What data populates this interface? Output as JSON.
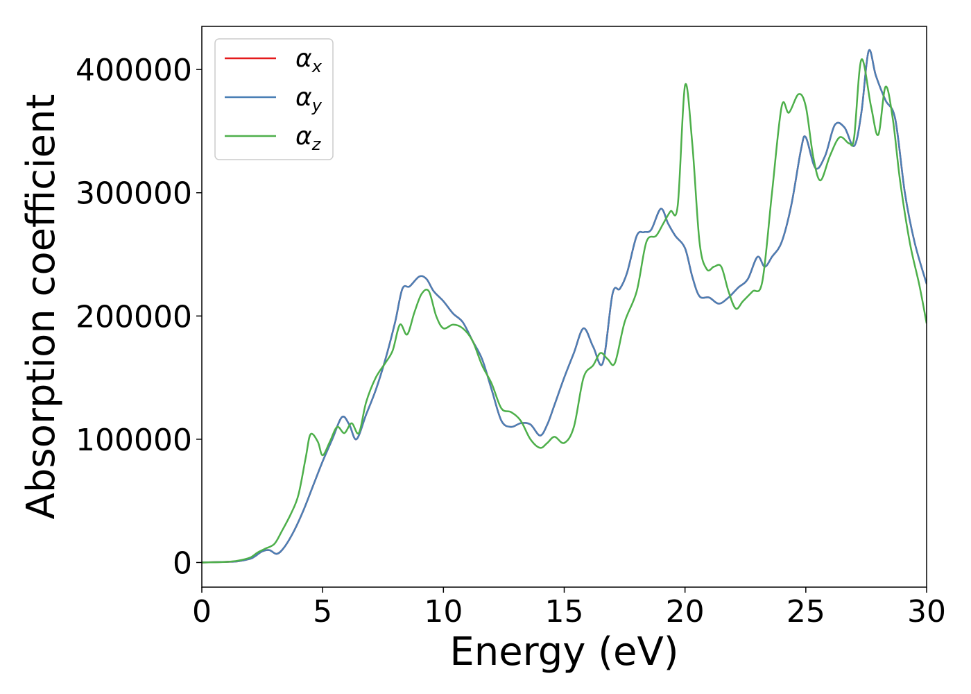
{
  "chart_data": {
    "type": "line",
    "title": "",
    "xlabel": "Energy (eV)",
    "ylabel": "Absorption coefficient",
    "xlim": [
      0,
      30
    ],
    "ylim": [
      -20000,
      435000
    ],
    "xticks": [
      0,
      5,
      10,
      15,
      20,
      25,
      30
    ],
    "yticks": [
      0,
      100000,
      200000,
      300000,
      400000
    ],
    "xtick_labels": [
      "0",
      "5",
      "10",
      "15",
      "20",
      "25",
      "30"
    ],
    "ytick_labels": [
      "0",
      "100000",
      "200000",
      "300000",
      "400000"
    ],
    "grid": false,
    "legend_position": "top-left",
    "series": [
      {
        "name": "αx",
        "legend_base": "α",
        "legend_sub": "x",
        "color": "#e41a1c",
        "x": [
          0,
          1,
          1.5,
          2,
          2.2,
          2.5,
          2.8,
          3.1,
          3.4,
          3.8,
          4.2,
          4.6,
          5.0,
          5.4,
          5.8,
          6.1,
          6.4,
          6.8,
          7.2,
          7.6,
          8.0,
          8.3,
          8.6,
          9.0,
          9.3,
          9.6,
          10.0,
          10.4,
          10.8,
          11.2,
          11.6,
          12.0,
          12.4,
          12.8,
          13.2,
          13.6,
          14.0,
          14.3,
          14.6,
          15.0,
          15.4,
          15.8,
          16.2,
          16.6,
          17.0,
          17.3,
          17.6,
          18.0,
          18.3,
          18.6,
          19.0,
          19.3,
          19.6,
          20.0,
          20.3,
          20.6,
          21.0,
          21.4,
          21.8,
          22.2,
          22.6,
          23.0,
          23.3,
          23.6,
          24.0,
          24.4,
          24.8,
          25.0,
          25.4,
          25.8,
          26.2,
          26.6,
          27.0,
          27.3,
          27.6,
          27.9,
          28.3,
          28.7,
          29.1,
          29.5,
          30.0
        ],
        "y": [
          0,
          500,
          1000,
          3000,
          5000,
          9000,
          10000,
          7000,
          12000,
          25000,
          42000,
          62000,
          82000,
          100000,
          118000,
          112000,
          100000,
          120000,
          140000,
          165000,
          195000,
          222000,
          224000,
          232000,
          230000,
          220000,
          212000,
          202000,
          195000,
          180000,
          165000,
          140000,
          115000,
          110000,
          113000,
          112000,
          103000,
          112000,
          128000,
          150000,
          170000,
          190000,
          175000,
          162000,
          218000,
          222000,
          235000,
          265000,
          268000,
          270000,
          287000,
          275000,
          265000,
          255000,
          232000,
          216000,
          215000,
          210000,
          215000,
          223000,
          230000,
          248000,
          240000,
          248000,
          260000,
          290000,
          335000,
          345000,
          320000,
          330000,
          355000,
          353000,
          338000,
          365000,
          415000,
          395000,
          375000,
          360000,
          300000,
          260000,
          226000
        ]
      },
      {
        "name": "αy",
        "legend_base": "α",
        "legend_sub": "y",
        "color": "#4a7fb5",
        "x": [
          0,
          1,
          1.5,
          2,
          2.2,
          2.5,
          2.8,
          3.1,
          3.4,
          3.8,
          4.2,
          4.6,
          5.0,
          5.4,
          5.8,
          6.1,
          6.4,
          6.8,
          7.2,
          7.6,
          8.0,
          8.3,
          8.6,
          9.0,
          9.3,
          9.6,
          10.0,
          10.4,
          10.8,
          11.2,
          11.6,
          12.0,
          12.4,
          12.8,
          13.2,
          13.6,
          14.0,
          14.3,
          14.6,
          15.0,
          15.4,
          15.8,
          16.2,
          16.6,
          17.0,
          17.3,
          17.6,
          18.0,
          18.3,
          18.6,
          19.0,
          19.3,
          19.6,
          20.0,
          20.3,
          20.6,
          21.0,
          21.4,
          21.8,
          22.2,
          22.6,
          23.0,
          23.3,
          23.6,
          24.0,
          24.4,
          24.8,
          25.0,
          25.4,
          25.8,
          26.2,
          26.6,
          27.0,
          27.3,
          27.6,
          27.9,
          28.3,
          28.7,
          29.1,
          29.5,
          30.0
        ],
        "y": [
          0,
          500,
          1000,
          3000,
          5000,
          9000,
          10000,
          7000,
          12000,
          25000,
          42000,
          62000,
          82000,
          100000,
          118000,
          112000,
          100000,
          120000,
          140000,
          165000,
          195000,
          222000,
          224000,
          232000,
          230000,
          220000,
          212000,
          202000,
          195000,
          180000,
          165000,
          140000,
          115000,
          110000,
          113000,
          112000,
          103000,
          112000,
          128000,
          150000,
          170000,
          190000,
          175000,
          162000,
          218000,
          222000,
          235000,
          265000,
          268000,
          270000,
          287000,
          275000,
          265000,
          255000,
          232000,
          216000,
          215000,
          210000,
          215000,
          223000,
          230000,
          248000,
          240000,
          248000,
          260000,
          290000,
          335000,
          345000,
          320000,
          330000,
          355000,
          353000,
          338000,
          365000,
          415000,
          395000,
          375000,
          360000,
          300000,
          260000,
          226000
        ]
      },
      {
        "name": "αz",
        "legend_base": "α",
        "legend_sub": "z",
        "color": "#4daf4a",
        "x": [
          0,
          1,
          1.5,
          2,
          2.3,
          2.6,
          3.0,
          3.3,
          3.7,
          4.0,
          4.3,
          4.5,
          4.8,
          5.0,
          5.3,
          5.6,
          5.9,
          6.2,
          6.5,
          6.8,
          7.2,
          7.6,
          7.9,
          8.2,
          8.5,
          8.8,
          9.1,
          9.4,
          9.7,
          10.0,
          10.4,
          10.8,
          11.2,
          11.6,
          12.0,
          12.4,
          12.8,
          13.2,
          13.6,
          14.0,
          14.3,
          14.6,
          15.0,
          15.4,
          15.8,
          16.2,
          16.5,
          16.8,
          17.1,
          17.5,
          18.0,
          18.4,
          18.8,
          19.1,
          19.4,
          19.7,
          20.0,
          20.3,
          20.6,
          20.9,
          21.2,
          21.5,
          21.8,
          22.1,
          22.4,
          22.8,
          23.2,
          23.6,
          24.0,
          24.3,
          24.7,
          25.0,
          25.3,
          25.6,
          26.0,
          26.4,
          26.8,
          27.0,
          27.3,
          27.7,
          28.0,
          28.3,
          28.6,
          28.9,
          29.3,
          29.7,
          30.0
        ],
        "y": [
          0,
          500,
          1500,
          4000,
          8000,
          11000,
          15000,
          25000,
          40000,
          55000,
          85000,
          104000,
          98000,
          87000,
          98000,
          110000,
          105000,
          113000,
          105000,
          130000,
          150000,
          162000,
          172000,
          193000,
          185000,
          203000,
          218000,
          220000,
          200000,
          190000,
          193000,
          190000,
          180000,
          160000,
          145000,
          125000,
          122000,
          115000,
          100000,
          93000,
          97000,
          102000,
          97000,
          110000,
          150000,
          160000,
          170000,
          165000,
          162000,
          195000,
          220000,
          260000,
          265000,
          275000,
          285000,
          290000,
          387000,
          340000,
          260000,
          238000,
          240000,
          240000,
          220000,
          206000,
          212000,
          220000,
          228000,
          300000,
          370000,
          365000,
          380000,
          370000,
          330000,
          310000,
          330000,
          345000,
          340000,
          345000,
          408000,
          370000,
          347000,
          386000,
          360000,
          310000,
          260000,
          225000,
          194000
        ]
      }
    ]
  }
}
